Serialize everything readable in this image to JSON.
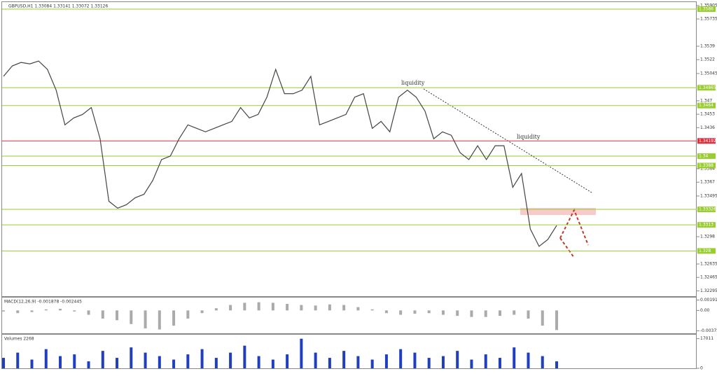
{
  "chart_data": [
    {
      "type": "line",
      "title": "GBPUSD,H1  1.33084 1.33141 1.33072 1.33126",
      "annotations": [
        "liquidity",
        "liquidity"
      ],
      "values": [
        1.35009,
        1.35141,
        1.35185,
        1.35167,
        1.35203,
        1.35097,
        1.34834,
        1.34395,
        1.34483,
        1.34527,
        1.34614,
        1.34219,
        1.33429,
        1.33341,
        1.33385,
        1.33473,
        1.33517,
        1.33692,
        1.33956,
        1.34,
        1.34219,
        1.34395,
        1.34351,
        1.34307,
        1.34351,
        1.34395,
        1.34439,
        1.34614,
        1.34483,
        1.34527,
        1.34746,
        1.35097,
        1.3479,
        1.3479,
        1.34834,
        1.35009,
        1.34395,
        1.34439,
        1.34483,
        1.34527,
        1.34746,
        1.3479,
        1.34351,
        1.34439,
        1.34307,
        1.34746,
        1.34834,
        1.34746,
        1.3457,
        1.34219,
        1.34307,
        1.34263,
        1.34044,
        1.33956,
        1.34131,
        1.33956,
        1.34131,
        1.34131,
        1.33605,
        1.3378,
        1.33078,
        1.32858,
        1.32946,
        1.33122
      ],
      "color": "#444444",
      "levels": [
        {
          "value": 1.3586,
          "color": "#9acd32"
        },
        {
          "value": 1.34865,
          "color": "#9acd32"
        },
        {
          "value": 1.3464,
          "color": "#9acd32"
        },
        {
          "value": 1.34192,
          "color": "#e0303e"
        },
        {
          "value": 1.34,
          "color": "#9acd32"
        },
        {
          "value": 1.3388,
          "color": "#9acd32"
        },
        {
          "value": 1.33326,
          "color": "#9acd32"
        },
        {
          "value": 1.3313,
          "color": "#9acd32"
        },
        {
          "value": 1.328,
          "color": "#9acd32"
        }
      ],
      "ylim": [
        1.3221,
        1.35975
      ],
      "yticks": [
        1.35905,
        1.35735,
        1.3539,
        1.3522,
        1.35045,
        1.347,
        1.3453,
        1.3436,
        1.3384,
        1.3367,
        1.33495,
        1.3298,
        1.32635,
        1.32465,
        1.32295
      ]
    },
    {
      "type": "bar",
      "title": "MACD(12,26,9) -0.001878 -0.002445",
      "color": "#aaaaaa",
      "values": [
        -0.0002,
        -0.0005,
        -0.0003,
        0.0002,
        0.0003,
        -0.0002,
        -0.0008,
        -0.0015,
        -0.0018,
        -0.0025,
        -0.0033,
        -0.0035,
        -0.0028,
        -0.0015,
        -0.0005,
        0.0004,
        0.001,
        0.0014,
        0.0015,
        0.0014,
        0.0012,
        0.001,
        0.0009,
        0.0011,
        0.001,
        0.0006,
        0.0002,
        -0.0005,
        -0.0008,
        -0.0006,
        -0.0005,
        -0.0008,
        -0.001,
        -0.0012,
        -0.0012,
        -0.001,
        -0.0008,
        -0.0015,
        -0.0028,
        -0.0036
      ],
      "ylim": [
        -0.0042,
        0.0021
      ],
      "yticks": [
        0.001912,
        {
          "value": 0,
          "label": "0.00"
        },
        -0.003752
      ]
    },
    {
      "type": "bar",
      "title": "Volumes 2268",
      "color": "#1f3fbf",
      "values": [
        6000,
        9000,
        5000,
        11000,
        7000,
        8000,
        4000,
        10000,
        6000,
        12000,
        9000,
        7000,
        5000,
        8000,
        11000,
        6000,
        9000,
        13000,
        7000,
        5000,
        8000,
        17000,
        9000,
        6000,
        10000,
        7000,
        5000,
        8000,
        11000,
        9000,
        6000,
        7000,
        10000,
        5000,
        8000,
        6000,
        12000,
        9000,
        7000,
        4000
      ],
      "ylim": [
        0,
        18500
      ],
      "yticks": [
        17011,
        0
      ]
    }
  ]
}
